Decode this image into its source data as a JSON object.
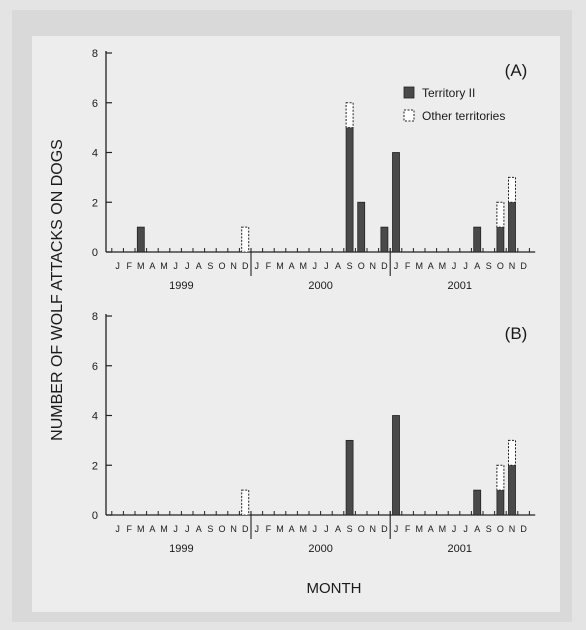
{
  "figure": {
    "ylabel": "NUMBER OF WOLF ATTACKS ON DOGS",
    "xlabel": "MONTH",
    "colors": {
      "territory": "#4a4a4a",
      "other": "#ffffff",
      "axis": "#222222"
    }
  },
  "chart_data": [
    {
      "type": "bar",
      "panel": "(A)",
      "stacked": true,
      "months": [
        "J",
        "F",
        "M",
        "A",
        "M",
        "J",
        "J",
        "A",
        "S",
        "O",
        "N",
        "D",
        "J",
        "F",
        "M",
        "A",
        "M",
        "J",
        "J",
        "A",
        "S",
        "O",
        "N",
        "D",
        "J",
        "F",
        "M",
        "A",
        "M",
        "J",
        "J",
        "A",
        "S",
        "O",
        "N",
        "D"
      ],
      "years": [
        "1999",
        "2000",
        "2001"
      ],
      "ylim": [
        0,
        8
      ],
      "yticks": [
        0,
        2,
        4,
        6,
        8
      ],
      "legend": {
        "position": "top-right",
        "entries": [
          "Territory II",
          "Other territories"
        ]
      },
      "series": [
        {
          "name": "Territory II",
          "values": [
            0,
            0,
            1,
            0,
            0,
            0,
            0,
            0,
            0,
            0,
            0,
            0,
            0,
            0,
            0,
            0,
            0,
            0,
            0,
            0,
            5,
            2,
            0,
            1,
            4,
            0,
            0,
            0,
            0,
            0,
            0,
            1,
            0,
            1,
            2,
            0
          ]
        },
        {
          "name": "Other territories",
          "values": [
            0,
            0,
            0,
            0,
            0,
            0,
            0,
            0,
            0,
            0,
            0,
            1,
            0,
            0,
            0,
            0,
            0,
            0,
            0,
            0,
            1,
            0,
            0,
            0,
            0,
            0,
            0,
            0,
            0,
            0,
            0,
            0,
            0,
            1,
            1,
            0
          ]
        }
      ]
    },
    {
      "type": "bar",
      "panel": "(B)",
      "stacked": true,
      "months": [
        "J",
        "F",
        "M",
        "A",
        "M",
        "J",
        "J",
        "A",
        "S",
        "O",
        "N",
        "D",
        "J",
        "F",
        "M",
        "A",
        "M",
        "J",
        "J",
        "A",
        "S",
        "O",
        "N",
        "D",
        "J",
        "F",
        "M",
        "A",
        "M",
        "J",
        "J",
        "A",
        "S",
        "O",
        "N",
        "D"
      ],
      "years": [
        "1999",
        "2000",
        "2001"
      ],
      "ylim": [
        0,
        8
      ],
      "yticks": [
        0,
        2,
        4,
        6,
        8
      ],
      "series": [
        {
          "name": "Territory II",
          "values": [
            0,
            0,
            0,
            0,
            0,
            0,
            0,
            0,
            0,
            0,
            0,
            0,
            0,
            0,
            0,
            0,
            0,
            0,
            0,
            0,
            3,
            0,
            0,
            0,
            4,
            0,
            0,
            0,
            0,
            0,
            0,
            1,
            0,
            1,
            2,
            0
          ]
        },
        {
          "name": "Other territories",
          "values": [
            0,
            0,
            0,
            0,
            0,
            0,
            0,
            0,
            0,
            0,
            0,
            1,
            0,
            0,
            0,
            0,
            0,
            0,
            0,
            0,
            0,
            0,
            0,
            0,
            0,
            0,
            0,
            0,
            0,
            0,
            0,
            0,
            0,
            1,
            1,
            0
          ]
        }
      ]
    }
  ]
}
